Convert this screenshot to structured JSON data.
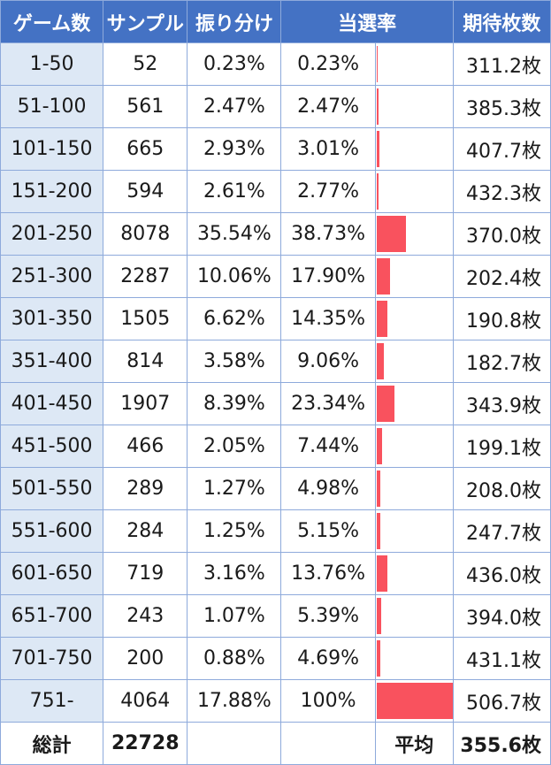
{
  "headers": {
    "game": "ゲーム数",
    "sample": "サンプル",
    "share": "振り分け",
    "win_rate": "当選率",
    "expected": "期待枚数"
  },
  "rows": [
    {
      "game": "1-50",
      "sample": "52",
      "share": "0.23%",
      "win_rate": "0.23%",
      "rate_value": 0.23,
      "expected": "311.2枚"
    },
    {
      "game": "51-100",
      "sample": "561",
      "share": "2.47%",
      "win_rate": "2.47%",
      "rate_value": 2.47,
      "expected": "385.3枚"
    },
    {
      "game": "101-150",
      "sample": "665",
      "share": "2.93%",
      "win_rate": "3.01%",
      "rate_value": 3.01,
      "expected": "407.7枚"
    },
    {
      "game": "151-200",
      "sample": "594",
      "share": "2.61%",
      "win_rate": "2.77%",
      "rate_value": 2.77,
      "expected": "432.3枚"
    },
    {
      "game": "201-250",
      "sample": "8078",
      "share": "35.54%",
      "win_rate": "38.73%",
      "rate_value": 38.73,
      "expected": "370.0枚"
    },
    {
      "game": "251-300",
      "sample": "2287",
      "share": "10.06%",
      "win_rate": "17.90%",
      "rate_value": 17.9,
      "expected": "202.4枚"
    },
    {
      "game": "301-350",
      "sample": "1505",
      "share": "6.62%",
      "win_rate": "14.35%",
      "rate_value": 14.35,
      "expected": "190.8枚"
    },
    {
      "game": "351-400",
      "sample": "814",
      "share": "3.58%",
      "win_rate": "9.06%",
      "rate_value": 9.06,
      "expected": "182.7枚"
    },
    {
      "game": "401-450",
      "sample": "1907",
      "share": "8.39%",
      "win_rate": "23.34%",
      "rate_value": 23.34,
      "expected": "343.9枚"
    },
    {
      "game": "451-500",
      "sample": "466",
      "share": "2.05%",
      "win_rate": "7.44%",
      "rate_value": 7.44,
      "expected": "199.1枚"
    },
    {
      "game": "501-550",
      "sample": "289",
      "share": "1.27%",
      "win_rate": "4.98%",
      "rate_value": 4.98,
      "expected": "208.0枚"
    },
    {
      "game": "551-600",
      "sample": "284",
      "share": "1.25%",
      "win_rate": "5.15%",
      "rate_value": 5.15,
      "expected": "247.7枚"
    },
    {
      "game": "601-650",
      "sample": "719",
      "share": "3.16%",
      "win_rate": "13.76%",
      "rate_value": 13.76,
      "expected": "436.0枚"
    },
    {
      "game": "651-700",
      "sample": "243",
      "share": "1.07%",
      "win_rate": "5.39%",
      "rate_value": 5.39,
      "expected": "394.0枚"
    },
    {
      "game": "701-750",
      "sample": "200",
      "share": "0.88%",
      "win_rate": "4.69%",
      "rate_value": 4.69,
      "expected": "431.1枚"
    },
    {
      "game": "751-",
      "sample": "4064",
      "share": "17.88%",
      "win_rate": "100%",
      "rate_value": 100,
      "expected": "506.7枚"
    }
  ],
  "footer": {
    "total_label": "総計",
    "total_value": "22728",
    "avg_label": "平均",
    "avg_value": "355.6枚"
  },
  "colors": {
    "header_bg": "#4472c4",
    "game_col_bg": "#dde8f5",
    "bar": "#f9525e",
    "border": "#8eaadb"
  }
}
